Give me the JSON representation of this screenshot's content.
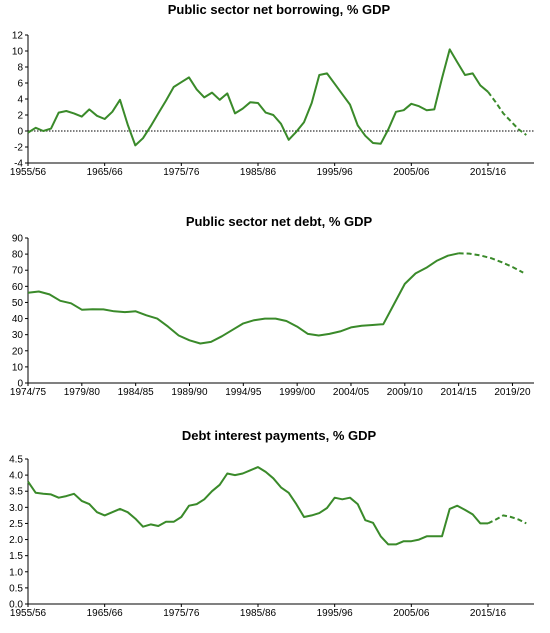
{
  "chart_data": [
    {
      "type": "line",
      "title": "Public sector net borrowing, % GDP",
      "xlabel": "",
      "ylabel": "",
      "x_start": 1955,
      "tick_labels": [
        "1955/56",
        "1965/66",
        "1975/76",
        "1985/86",
        "1995/96",
        "2005/06",
        "2015/16"
      ],
      "ylim": [
        -4,
        12
      ],
      "yticks": [
        -4,
        -2,
        0,
        2,
        4,
        6,
        8,
        10,
        12
      ],
      "line_color": "#3a8a2a",
      "series": [
        {
          "values": [
            -0.2,
            0.4,
            0.0,
            0.3,
            2.3,
            2.5,
            2.2,
            1.8,
            2.7,
            1.9,
            1.5,
            2.4,
            3.9,
            0.8,
            -1.8,
            -0.9,
            0.6,
            2.2,
            3.8,
            5.5,
            6.1,
            6.7,
            5.2,
            4.2,
            4.8,
            3.9,
            4.7,
            2.2,
            2.8,
            3.6,
            3.5,
            2.3,
            2.0,
            0.9,
            -1.1,
            -0.1,
            1.1,
            3.5,
            7.0,
            7.2,
            5.9,
            4.6,
            3.3,
            0.7,
            -0.6,
            -1.5,
            -1.6,
            0.2,
            2.4,
            2.6,
            3.4,
            3.1,
            2.6,
            2.7,
            6.6,
            10.2,
            8.6,
            7.0,
            7.2,
            5.7,
            4.9
          ],
          "projection": [
            4.9,
            3.6,
            2.2,
            1.2,
            0.2,
            -0.5
          ]
        }
      ]
    },
    {
      "type": "line",
      "title": "Public sector net debt, % GDP",
      "xlabel": "",
      "ylabel": "",
      "x_start": 1974,
      "tick_labels": [
        "1974/75",
        "1979/80",
        "1984/85",
        "1989/90",
        "1994/95",
        "1999/00",
        "2004/05",
        "2009/10",
        "2014/15",
        "2019/20"
      ],
      "ylim": [
        0,
        90
      ],
      "yticks": [
        0,
        10,
        20,
        30,
        40,
        50,
        60,
        70,
        80,
        90
      ],
      "line_color": "#3a8a2a",
      "series": [
        {
          "values": [
            56,
            56.8,
            55,
            51,
            49.5,
            45.5,
            45.8,
            45.7,
            44.5,
            44,
            44.5,
            42,
            40,
            35,
            29.5,
            26.5,
            24.5,
            25.5,
            29,
            33,
            37,
            39,
            40,
            40,
            38.5,
            35,
            30.5,
            29.5,
            30.5,
            32,
            34.5,
            35.5,
            36,
            36.5,
            49,
            61.5,
            68,
            71.5,
            76,
            79,
            80.5
          ],
          "projection": [
            80.5,
            80.3,
            79.2,
            77.5,
            75,
            72,
            68.5
          ]
        }
      ]
    },
    {
      "type": "line",
      "title": "Debt interest payments, % GDP",
      "xlabel": "",
      "ylabel": "",
      "x_start": 1955,
      "tick_labels": [
        "1955/56",
        "1965/66",
        "1975/76",
        "1985/86",
        "1995/96",
        "2005/06",
        "2015/16"
      ],
      "ylim": [
        0,
        4.5
      ],
      "yticks": [
        0.0,
        0.5,
        1.0,
        1.5,
        2.0,
        2.5,
        3.0,
        3.5,
        4.0,
        4.5
      ],
      "line_color": "#3a8a2a",
      "series": [
        {
          "values": [
            3.8,
            3.45,
            3.42,
            3.4,
            3.3,
            3.35,
            3.42,
            3.2,
            3.1,
            2.85,
            2.75,
            2.85,
            2.95,
            2.85,
            2.65,
            2.4,
            2.47,
            2.42,
            2.55,
            2.55,
            2.7,
            3.05,
            3.1,
            3.25,
            3.5,
            3.7,
            4.05,
            4.0,
            4.05,
            4.15,
            4.25,
            4.1,
            3.9,
            3.62,
            3.45,
            3.1,
            2.7,
            2.75,
            2.82,
            2.98,
            3.3,
            3.25,
            3.3,
            3.1,
            2.6,
            2.52,
            2.1,
            1.85,
            1.85,
            1.95,
            1.95,
            2.0,
            2.1,
            2.1,
            2.1,
            2.95,
            3.05,
            2.92,
            2.78,
            2.5,
            2.5
          ],
          "projection": [
            2.5,
            2.62,
            2.75,
            2.7,
            2.62,
            2.5
          ]
        }
      ]
    }
  ]
}
